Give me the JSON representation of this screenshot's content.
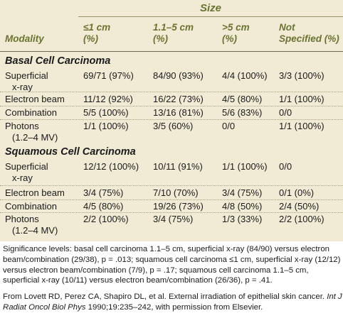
{
  "table": {
    "size_header": "Size",
    "columns": [
      {
        "label": "Modality",
        "sub": ""
      },
      {
        "label": "≤1 cm",
        "sub": "(%)"
      },
      {
        "label": "1.1–5 cm",
        "sub": "(%)"
      },
      {
        "label": ">5 cm",
        "sub": "(%)"
      },
      {
        "label": "Not",
        "sub": "Specified (%)"
      }
    ],
    "sections": [
      {
        "title": "Basal Cell Carcinoma",
        "rows": [
          {
            "modality": [
              "Superficial",
              "x-ray"
            ],
            "c1": "69/71 (97%)",
            "c2": "84/90 (93%)",
            "c3": "4/4 (100%)",
            "c4": "3/3 (100%)"
          },
          {
            "modality": [
              "Electron beam"
            ],
            "c1": "11/12 (92%)",
            "c2": "16/22 (73%)",
            "c3": "4/5 (80%)",
            "c4": "1/1 (100%)"
          },
          {
            "modality": [
              "Combination"
            ],
            "c1": "5/5 (100%)",
            "c2": "13/16 (81%)",
            "c3": "5/6 (83%)",
            "c4": "0/0"
          },
          {
            "modality": [
              "Photons",
              "(1.2–4 MV)"
            ],
            "c1": "1/1 (100%)",
            "c2": "3/5 (60%)",
            "c3": "0/0",
            "c4": "1/1 (100%)"
          }
        ]
      },
      {
        "title": "Squamous Cell Carcinoma",
        "rows": [
          {
            "modality": [
              "Superficial",
              "x-ray"
            ],
            "c1": "12/12 (100%)",
            "c2": "10/11 (91%)",
            "c3": "1/1 (100%)",
            "c4": "0/0"
          },
          {
            "modality": [
              "Electron beam"
            ],
            "c1": "3/4 (75%)",
            "c2": "7/10 (70%)",
            "c3": "3/4 (75%)",
            "c4": "0/1 (0%)"
          },
          {
            "modality": [
              "Combination"
            ],
            "c1": "4/5 (80%)",
            "c2": "19/26 (73%)",
            "c3": "4/8 (50%)",
            "c4": "2/4 (50%)"
          },
          {
            "modality": [
              "Photons",
              "(1.2–4 MV)"
            ],
            "c1": "2/2 (100%)",
            "c2": "3/4 (75%)",
            "c3": "1/3 (33%)",
            "c4": "2/2 (100%)"
          }
        ]
      }
    ]
  },
  "footer": {
    "significance": "Significance levels: basal cell carcinoma 1.1–5 cm, superficial x-ray (84/90) versus electron beam/combination (29/38), p = .013; squamous cell carcinoma ≤1 cm, superficial x-ray (12/12) versus electron beam/combination (7/9), p = .17; squamous cell carcinoma 1.1–5 cm, superficial x-ray (10/11) versus electron beam/combination (26/36), p = .41.",
    "source_prefix": "From Lovett RD, Perez CA, Shapiro DL, et al. External irradiation of epithelial skin cancer. ",
    "source_journal": "Int J Radiat Oncol Biol Phys",
    "source_suffix": " 1990;19:235–242, with permission from Elsevier."
  }
}
